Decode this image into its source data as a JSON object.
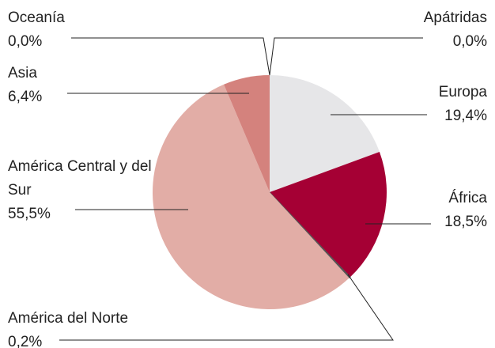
{
  "chart_data": {
    "type": "pie",
    "categories": [
      "Apátridas",
      "Europa",
      "África",
      "América del Norte",
      "América Central y del Sur",
      "Asia",
      "Oceanía"
    ],
    "values": [
      0.0,
      19.4,
      18.5,
      0.2,
      55.5,
      6.4,
      0.0
    ],
    "value_labels": [
      "0,0%",
      "19,4%",
      "18,5%",
      "0,2%",
      "55,5%",
      "6,4%",
      "0,0%"
    ],
    "colors": [
      "#e6e6e8",
      "#e6e6e8",
      "#a50034",
      "#555555",
      "#e2ada6",
      "#d4827d",
      "#d4827d"
    ]
  }
}
